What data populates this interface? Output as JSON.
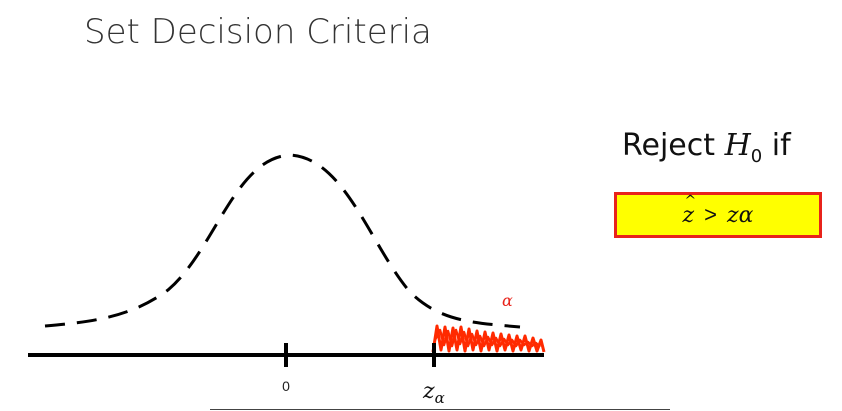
{
  "slide": {
    "title": "Set Decision Criteria"
  },
  "diagram": {
    "tick_zero_label": "0",
    "critical_value_symbol": "z",
    "critical_value_subscript": "α",
    "tail_area_label": "α",
    "tail_color": "#ff2a00",
    "curve_color": "#000000"
  },
  "decision_rule": {
    "heading_prefix": "Reject",
    "hypothesis_symbol": "H",
    "hypothesis_subscript": "0",
    "heading_suffix": "if",
    "condition_lhs": "z",
    "condition_operator": ">",
    "condition_rhs_symbol": "z",
    "condition_rhs_subscript": "α",
    "box_fill": "#ffff00",
    "box_border": "#e8231b"
  }
}
